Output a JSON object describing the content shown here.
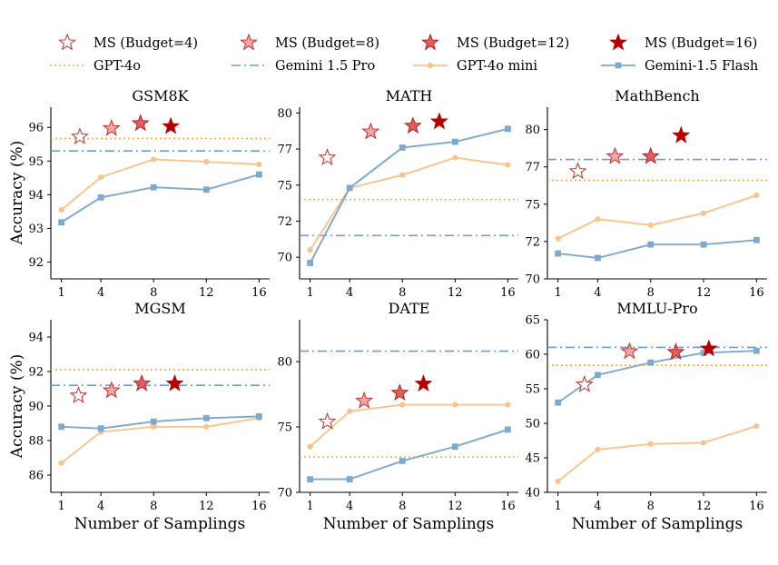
{
  "legend": {
    "entries": [
      {
        "label": "MS (Budget=4)",
        "kind": "star",
        "fill": "#ffffff",
        "stroke": "#c03030"
      },
      {
        "label": "MS (Budget=8)",
        "kind": "star",
        "fill": "#f4a6a6",
        "stroke": "#c03030"
      },
      {
        "label": "MS (Budget=12)",
        "kind": "star",
        "fill": "#e06060",
        "stroke": "#b02020"
      },
      {
        "label": "MS (Budget=16)",
        "kind": "star",
        "fill": "#b30000",
        "stroke": "#b30000"
      },
      {
        "label": "GPT-4o",
        "kind": "dotted",
        "color": "#f5a94a"
      },
      {
        "label": "Gemini 1.5 Pro",
        "kind": "dashdot",
        "color": "#6f9fc9"
      },
      {
        "label": "GPT-4o mini",
        "kind": "line-circle",
        "color": "#f9c38c"
      },
      {
        "label": "Gemini-1.5 Flash",
        "kind": "line-square",
        "color": "#7ea8cc"
      }
    ]
  },
  "colors": {
    "gpt4o_mini": "#f9c38c",
    "gemini_flash": "#7ea8cc",
    "gpt4o_ref": "#f5a94a",
    "gemini_pro_ref": "#6f9fc9"
  },
  "xlabel": "Number of Samplings",
  "ylabel": "Accuracy (%)",
  "chart_data": [
    {
      "type": "line",
      "title": "GSM8K",
      "x": [
        1,
        4,
        8,
        12,
        16
      ],
      "x_ticks": [
        1,
        4,
        8,
        12,
        16
      ],
      "ylim": [
        91.5,
        96.6
      ],
      "y_ticks": [
        92,
        93,
        94,
        95,
        96
      ],
      "series": [
        {
          "name": "GPT-4o mini",
          "values": [
            93.55,
            94.52,
            95.05,
            94.98,
            94.9
          ]
        },
        {
          "name": "Gemini-1.5 Flash",
          "values": [
            93.18,
            93.92,
            94.22,
            94.15,
            94.6
          ]
        }
      ],
      "reference_lines": [
        {
          "name": "GPT-4o",
          "value": 95.67
        },
        {
          "name": "Gemini 1.5 Pro",
          "value": 95.3
        }
      ],
      "ms_points": [
        {
          "name": "MS (Budget=4)",
          "x": 2.4,
          "y": 95.72
        },
        {
          "name": "MS (Budget=8)",
          "x": 4.8,
          "y": 95.97
        },
        {
          "name": "MS (Budget=12)",
          "x": 7.0,
          "y": 96.12
        },
        {
          "name": "MS (Budget=16)",
          "x": 9.3,
          "y": 96.03
        }
      ]
    },
    {
      "type": "line",
      "title": "MATH",
      "x": [
        1,
        4,
        8,
        12,
        16
      ],
      "x_ticks": [
        1,
        4,
        8,
        12,
        16
      ],
      "ylim": [
        68.5,
        80.4
      ],
      "y_ticks": [
        70,
        72.5,
        75,
        77.5,
        80
      ],
      "y_tick_labels": [
        "70",
        "72",
        "75",
        "77",
        "80"
      ],
      "series": [
        {
          "name": "GPT-4o mini",
          "values": [
            70.5,
            74.8,
            75.7,
            76.9,
            76.4
          ]
        },
        {
          "name": "Gemini-1.5 Flash",
          "values": [
            69.6,
            74.8,
            77.6,
            78.0,
            78.9
          ]
        }
      ],
      "reference_lines": [
        {
          "name": "GPT-4o",
          "value": 74.0
        },
        {
          "name": "Gemini 1.5 Pro",
          "value": 71.5
        }
      ],
      "ms_points": [
        {
          "name": "MS (Budget=4)",
          "x": 2.3,
          "y": 76.9
        },
        {
          "name": "MS (Budget=8)",
          "x": 5.6,
          "y": 78.7
        },
        {
          "name": "MS (Budget=12)",
          "x": 8.8,
          "y": 79.1
        },
        {
          "name": "MS (Budget=16)",
          "x": 10.8,
          "y": 79.4
        }
      ]
    },
    {
      "type": "line",
      "title": "MathBench",
      "x": [
        1,
        4,
        8,
        12,
        16
      ],
      "x_ticks": [
        1,
        4,
        8,
        12,
        16
      ],
      "ylim": [
        70,
        81.5
      ],
      "y_ticks": [
        70,
        72.5,
        75,
        77.5,
        80
      ],
      "y_tick_labels": [
        "70",
        "72",
        "75",
        "77",
        "80"
      ],
      "series": [
        {
          "name": "GPT-4o mini",
          "values": [
            72.7,
            74.0,
            73.6,
            74.4,
            75.6
          ]
        },
        {
          "name": "Gemini-1.5 Flash",
          "values": [
            71.7,
            71.4,
            72.3,
            72.3,
            72.6
          ]
        }
      ],
      "reference_lines": [
        {
          "name": "GPT-4o",
          "value": 76.6
        },
        {
          "name": "Gemini 1.5 Pro",
          "value": 78.0
        }
      ],
      "ms_points": [
        {
          "name": "MS (Budget=4)",
          "x": 2.5,
          "y": 77.2
        },
        {
          "name": "MS (Budget=8)",
          "x": 5.3,
          "y": 78.2
        },
        {
          "name": "MS (Budget=12)",
          "x": 8.0,
          "y": 78.2
        },
        {
          "name": "MS (Budget=16)",
          "x": 10.3,
          "y": 79.6
        }
      ]
    },
    {
      "type": "line",
      "title": "MGSM",
      "x": [
        1,
        4,
        8,
        12,
        16
      ],
      "x_ticks": [
        1,
        4,
        8,
        12,
        16
      ],
      "ylim": [
        85,
        95
      ],
      "y_ticks": [
        86,
        88,
        90,
        92,
        94
      ],
      "series": [
        {
          "name": "GPT-4o mini",
          "values": [
            86.7,
            88.5,
            88.8,
            88.8,
            89.3
          ]
        },
        {
          "name": "Gemini-1.5 Flash",
          "values": [
            88.8,
            88.7,
            89.1,
            89.3,
            89.4
          ]
        }
      ],
      "reference_lines": [
        {
          "name": "GPT-4o",
          "value": 92.1
        },
        {
          "name": "Gemini 1.5 Pro",
          "value": 91.2
        }
      ],
      "ms_points": [
        {
          "name": "MS (Budget=4)",
          "x": 2.3,
          "y": 90.6
        },
        {
          "name": "MS (Budget=8)",
          "x": 4.8,
          "y": 90.9
        },
        {
          "name": "MS (Budget=12)",
          "x": 7.1,
          "y": 91.3
        },
        {
          "name": "MS (Budget=16)",
          "x": 9.6,
          "y": 91.3
        }
      ]
    },
    {
      "type": "line",
      "title": "DATE",
      "x": [
        1,
        4,
        8,
        12,
        16
      ],
      "x_ticks": [
        1,
        4,
        8,
        12,
        16
      ],
      "ylim": [
        70,
        83.2
      ],
      "y_ticks": [
        70,
        75,
        80
      ],
      "series": [
        {
          "name": "GPT-4o mini",
          "values": [
            73.5,
            76.2,
            76.7,
            76.7,
            76.7
          ]
        },
        {
          "name": "Gemini-1.5 Flash",
          "values": [
            71.0,
            71.0,
            72.4,
            73.5,
            74.8
          ]
        }
      ],
      "reference_lines": [
        {
          "name": "GPT-4o",
          "value": 72.7
        },
        {
          "name": "Gemini 1.5 Pro",
          "value": 80.8
        }
      ],
      "ms_points": [
        {
          "name": "MS (Budget=4)",
          "x": 2.3,
          "y": 75.4
        },
        {
          "name": "MS (Budget=8)",
          "x": 5.1,
          "y": 77.0
        },
        {
          "name": "MS (Budget=12)",
          "x": 7.8,
          "y": 77.6
        },
        {
          "name": "MS (Budget=16)",
          "x": 9.6,
          "y": 78.3
        }
      ]
    },
    {
      "type": "line",
      "title": "MMLU-Pro",
      "x": [
        1,
        4,
        8,
        12,
        16
      ],
      "x_ticks": [
        1,
        4,
        8,
        12,
        16
      ],
      "ylim": [
        40,
        65
      ],
      "y_ticks": [
        40,
        45,
        50,
        55,
        60,
        65
      ],
      "series": [
        {
          "name": "GPT-4o mini",
          "values": [
            41.6,
            46.2,
            47.0,
            47.2,
            49.6
          ]
        },
        {
          "name": "Gemini-1.5 Flash",
          "values": [
            53.0,
            57.0,
            58.8,
            60.2,
            60.5
          ]
        }
      ],
      "reference_lines": [
        {
          "name": "GPT-4o",
          "value": 58.4
        },
        {
          "name": "Gemini 1.5 Pro",
          "value": 61.0
        }
      ],
      "ms_points": [
        {
          "name": "MS (Budget=4)",
          "x": 3.0,
          "y": 55.6
        },
        {
          "name": "MS (Budget=8)",
          "x": 6.4,
          "y": 60.4
        },
        {
          "name": "MS (Budget=12)",
          "x": 9.9,
          "y": 60.3
        },
        {
          "name": "MS (Budget=16)",
          "x": 12.4,
          "y": 60.8
        }
      ]
    }
  ]
}
